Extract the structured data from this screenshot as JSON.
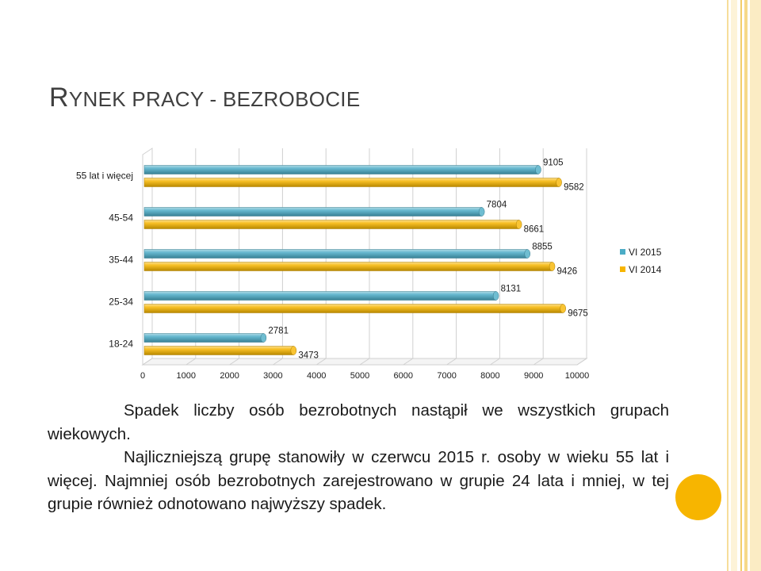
{
  "slide": {
    "title_first_letter": "R",
    "title_rest": "YNEK PRACY - BEZROBOCIE",
    "paragraphs": [
      "Spadek liczby osób bezrobotnych nastąpił we wszystkich grupach wiekowych.",
      "Najliczniejszą grupę stanowiły w czerwcu 2015 r. osoby w wieku 55 lat i więcej. Najmniej osób bezrobotnych zarejestrowano w grupie 24 lata i mniej, w tej grupie również odnotowano najwyższy spadek."
    ]
  },
  "colors": {
    "series_2015": "#4bacc6",
    "series_2014": "#f7b500",
    "grid": "#d0d0d0",
    "title": "#404040",
    "text": "#1a1a1a"
  },
  "chart_data": {
    "type": "bar",
    "orientation": "horizontal",
    "style": "3d-cylinder",
    "categories": [
      "55 lat i więcej",
      "45-54",
      "35-44",
      "25-34",
      "18-24"
    ],
    "series": [
      {
        "name": "VI 2015",
        "values": [
          9105,
          7804,
          8855,
          8131,
          2781
        ]
      },
      {
        "name": "VI 2014",
        "values": [
          9582,
          8661,
          9426,
          9675,
          3473
        ]
      }
    ],
    "xlim": [
      0,
      10000
    ],
    "xticks": [
      "0",
      "1000",
      "2000",
      "3000",
      "4000",
      "5000",
      "6000",
      "7000",
      "8000",
      "9000",
      "10000"
    ],
    "grid": true,
    "legend_position": "right"
  }
}
